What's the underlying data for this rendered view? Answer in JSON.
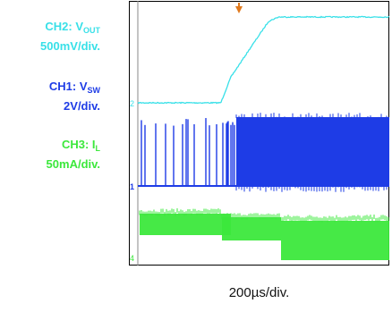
{
  "channels": [
    {
      "name_main": "CH2: V",
      "name_sub": "OUT",
      "scale": "500mV/div.",
      "color": "#38e0e8",
      "marker": "2"
    },
    {
      "name_main": "CH1: V",
      "name_sub": "SW",
      "scale": "2V/div.",
      "color": "#1e3ce6",
      "marker": "1"
    },
    {
      "name_main": "CH3: I",
      "name_sub": "L",
      "scale": "50mA/div.",
      "color": "#3ce83c",
      "marker": "4"
    }
  ],
  "trigger_color": "#e07a1e",
  "timebase": "200µs/div.",
  "chart_data": {
    "type": "line",
    "title": "",
    "xlabel": "200µs/div.",
    "ylabel": "",
    "series": [
      {
        "name": "CH2: VOUT",
        "scale": "500mV/div.",
        "color": "#38e0e8",
        "x_fraction": [
          0.0,
          0.33,
          0.37,
          0.45,
          0.52,
          0.56,
          1.0
        ],
        "y_relative": [
          0.0,
          0.0,
          0.3,
          0.65,
          0.95,
          1.0,
          1.0
        ]
      },
      {
        "name": "CH1: VSW",
        "scale": "2V/div.",
        "color": "#1e3ce6",
        "description_values": {
          "sparse_pulses_until": 0.38,
          "continuous_switching_from": 0.38
        }
      },
      {
        "name": "CH3: IL",
        "scale": "50mA/div.",
        "color": "#3ce83c",
        "description_values": {
          "ripple_until": 0.36,
          "reduced_mean_from": 0.56
        }
      }
    ]
  }
}
